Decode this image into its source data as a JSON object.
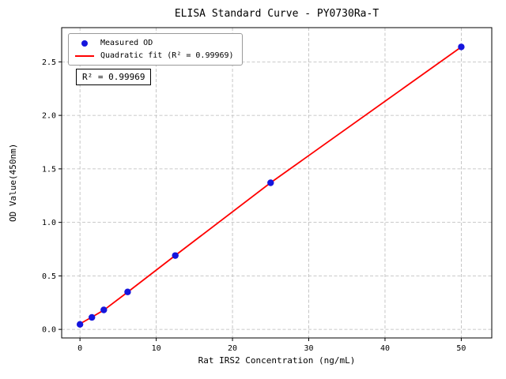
{
  "chart_data": {
    "type": "scatter",
    "title": "ELISA Standard Curve - PY0730Ra-T",
    "xlabel": "Rat IRS2 Concentration (ng/mL)",
    "ylabel": "OD Value(450nm)",
    "annotation": "R² = 0.99969",
    "xlim": [
      -2.4,
      54.0
    ],
    "ylim": [
      -0.08,
      2.82
    ],
    "xticks": [
      0,
      10,
      20,
      30,
      40,
      50
    ],
    "yticks": [
      0.0,
      0.5,
      1.0,
      1.5,
      2.0,
      2.5
    ],
    "grid": true,
    "grid_style": "dashed",
    "legend_position": "upper left",
    "series": [
      {
        "name": "Measured OD",
        "type": "scatter",
        "color": "#1515dd",
        "x": [
          0,
          1.563,
          3.125,
          6.25,
          12.5,
          25,
          50
        ],
        "y": [
          0.047,
          0.112,
          0.182,
          0.35,
          0.69,
          1.37,
          2.64
        ]
      },
      {
        "name": "Quadratic fit (R² = 0.99969)",
        "type": "line",
        "color": "#ff0000",
        "x": [
          0,
          1.563,
          3.125,
          6.25,
          12.5,
          25,
          50
        ],
        "y": [
          0.052,
          0.115,
          0.18,
          0.348,
          0.691,
          1.371,
          2.639
        ]
      }
    ]
  }
}
